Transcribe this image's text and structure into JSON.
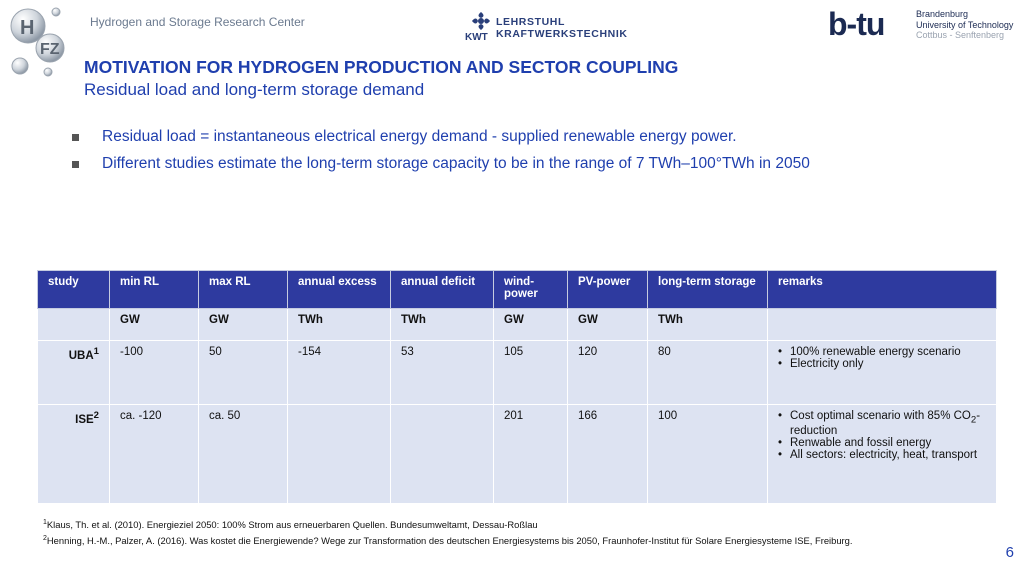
{
  "header": {
    "logo_h2fz": "H2FZ",
    "center_name": "Hydrogen and Storage Research Center",
    "kwt": {
      "short": "KWT",
      "line1": "LEHRSTUHL",
      "line2": "KRAFTWERKSTECHNIK"
    },
    "btu": {
      "word": "b-tu",
      "line1": "Brandenburg",
      "line2": "University of Technology",
      "line3": "Cottbus - Senftenberg"
    }
  },
  "title": "MOTIVATION FOR HYDROGEN PRODUCTION AND SECTOR COUPLING",
  "subtitle": "Residual load and long-term storage demand",
  "bullets": [
    "Residual load = instantaneous electrical energy demand  -  supplied renewable energy power.",
    "Different studies estimate the long-term storage capacity to be in the range of 7 TWh–100°TWh in 2050"
  ],
  "table": {
    "headers": [
      "study",
      "min RL",
      "max RL",
      "annual excess",
      "annual deficit",
      "wind-power",
      "PV-power",
      "long-term storage",
      "remarks"
    ],
    "units": [
      "",
      "GW",
      "GW",
      "TWh",
      "TWh",
      "GW",
      "GW",
      "TWh",
      ""
    ],
    "rows": [
      {
        "study": "UBA",
        "sup": "1",
        "min_rl": "-100",
        "max_rl": "50",
        "excess": "-154",
        "deficit": "53",
        "wind": "105",
        "pv": "120",
        "storage": "80",
        "remarks": [
          "100% renewable energy scenario",
          "Electricity only"
        ]
      },
      {
        "study": "ISE",
        "sup": "2",
        "min_rl": "ca. -120",
        "max_rl": "ca. 50",
        "excess": "",
        "deficit": "",
        "wind": "201",
        "pv": "166",
        "storage": "100",
        "remarks_r1a": "Cost optimal scenario with 85% CO",
        "remarks_r1sub": "2",
        "remarks_r1b": "-reduction",
        "remarks": [
          "Renwable and fossil energy",
          "All sectors: electricity, heat, transport"
        ]
      }
    ]
  },
  "footnotes": [
    {
      "sup": "1",
      "text": "Klaus, Th. et al. (2010). Energieziel 2050: 100% Strom aus erneuerbaren Quellen. Bundesumweltamt, Dessau-Roßlau"
    },
    {
      "sup": "2",
      "text": "Henning, H.-M., Palzer, A. (2016). Was kostet die Energiewende? Wege zur Transformation des deutschen Energiesystems bis 2050, Fraunhofer-Institut für Solare Energiesysteme ISE, Freiburg."
    }
  ],
  "page_number": "6"
}
